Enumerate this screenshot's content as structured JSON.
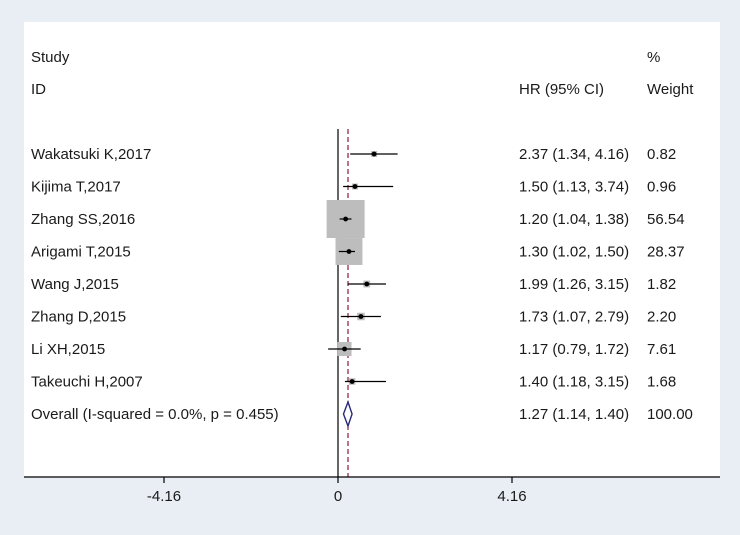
{
  "chart_data": {
    "type": "forest",
    "header": {
      "study_line1": "Study",
      "study_line2": "ID",
      "effect_label": "HR (95% CI)",
      "weight_line1": "%",
      "weight_line2": "Weight"
    },
    "studies": [
      {
        "label": "Wakatsuki K,2017",
        "hr": 2.37,
        "lo": 1.34,
        "hi": 4.16,
        "weight": 0.82,
        "ci_text": "2.37 (1.34, 4.16)",
        "weight_text": "0.82"
      },
      {
        "label": "Kijima T,2017",
        "hr": 1.5,
        "lo": 1.13,
        "hi": 3.74,
        "weight": 0.96,
        "ci_text": "1.50 (1.13, 3.74)",
        "weight_text": "0.96"
      },
      {
        "label": "Zhang SS,2016",
        "hr": 1.2,
        "lo": 1.04,
        "hi": 1.38,
        "weight": 56.54,
        "ci_text": "1.20 (1.04, 1.38)",
        "weight_text": "56.54"
      },
      {
        "label": "Arigami T,2015",
        "hr": 1.3,
        "lo": 1.02,
        "hi": 1.5,
        "weight": 28.37,
        "ci_text": "1.30 (1.02, 1.50)",
        "weight_text": "28.37"
      },
      {
        "label": "Wang J,2015",
        "hr": 1.99,
        "lo": 1.26,
        "hi": 3.15,
        "weight": 1.82,
        "ci_text": "1.99 (1.26, 3.15)",
        "weight_text": "1.82"
      },
      {
        "label": "Zhang D,2015",
        "hr": 1.73,
        "lo": 1.07,
        "hi": 2.79,
        "weight": 2.2,
        "ci_text": "1.73 (1.07, 2.79)",
        "weight_text": "2.20"
      },
      {
        "label": "Li XH,2015",
        "hr": 1.17,
        "lo": 0.79,
        "hi": 1.72,
        "weight": 7.61,
        "ci_text": "1.17 (0.79, 1.72)",
        "weight_text": "7.61"
      },
      {
        "label": "Takeuchi H,2007",
        "hr": 1.4,
        "lo": 1.18,
        "hi": 3.15,
        "weight": 1.68,
        "ci_text": "1.40 (1.18, 3.15)",
        "weight_text": "1.68"
      }
    ],
    "overall": {
      "label": "Overall  (I-squared = 0.0%, p = 0.455)",
      "hr": 1.27,
      "lo": 1.14,
      "hi": 1.4,
      "weight": 100.0,
      "ci_text": "1.27 (1.14, 1.40)",
      "weight_text": "100.00"
    },
    "x_axis": {
      "ticks": [
        -4.16,
        0,
        4.16
      ],
      "tick_labels": [
        "-4.16",
        "0",
        "4.16"
      ],
      "xlim": [
        -4.16,
        4.16
      ],
      "scale": "log-symmetric"
    },
    "null_line": 0,
    "colors": {
      "box": "#bdbdbd",
      "ci_line": "#000000",
      "overall_line": "#8b1a3a",
      "diamond": "#2a2a7a",
      "background": "#e8eef3",
      "plot_bg": "#ffffff"
    }
  }
}
